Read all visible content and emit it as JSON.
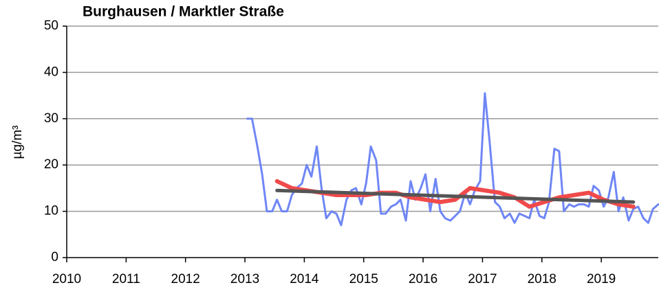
{
  "chart_data": {
    "type": "line",
    "title": "Burghausen / Marktler Straße",
    "ylabel": "µg/m³",
    "xlim": [
      2010,
      2019.96
    ],
    "xticks": [
      2010,
      2011,
      2012,
      2013,
      2014,
      2015,
      2016,
      2017,
      2018,
      2019
    ],
    "ylim": [
      0,
      50
    ],
    "yticks": [
      0,
      10,
      20,
      30,
      40,
      50
    ],
    "grid": true,
    "series": [
      {
        "color": "#6f86f5",
        "width": 3,
        "x": [
          2013.04,
          2013.12,
          2013.21,
          2013.29,
          2013.37,
          2013.46,
          2013.54,
          2013.62,
          2013.71,
          2013.79,
          2013.87,
          2013.96,
          2014.04,
          2014.12,
          2014.21,
          2014.29,
          2014.37,
          2014.46,
          2014.54,
          2014.62,
          2014.71,
          2014.79,
          2014.87,
          2014.96,
          2015.04,
          2015.12,
          2015.21,
          2015.29,
          2015.37,
          2015.46,
          2015.54,
          2015.62,
          2015.71,
          2015.79,
          2015.87,
          2015.96,
          2016.04,
          2016.12,
          2016.21,
          2016.29,
          2016.37,
          2016.46,
          2016.54,
          2016.62,
          2016.71,
          2016.79,
          2016.87,
          2016.96,
          2017.04,
          2017.12,
          2017.21,
          2017.29,
          2017.37,
          2017.46,
          2017.54,
          2017.62,
          2017.71,
          2017.79,
          2017.87,
          2017.96,
          2018.04,
          2018.12,
          2018.21,
          2018.29,
          2018.37,
          2018.46,
          2018.54,
          2018.62,
          2018.71,
          2018.79,
          2018.87,
          2018.96,
          2019.04,
          2019.12,
          2019.21,
          2019.29,
          2019.37,
          2019.46,
          2019.54,
          2019.62,
          2019.71,
          2019.79,
          2019.87,
          2019.96
        ],
        "values": [
          30,
          30,
          24,
          18,
          10,
          10,
          12.5,
          10,
          10,
          13.5,
          15,
          16,
          20,
          17.5,
          24,
          15,
          8.5,
          10,
          9.5,
          7,
          12.5,
          14.5,
          15,
          11.5,
          16,
          24,
          21,
          9.5,
          9.5,
          11,
          11.5,
          12.5,
          8,
          16.5,
          12.5,
          15,
          18,
          10,
          17,
          10,
          8.5,
          8,
          9,
          10,
          14,
          11.5,
          14.5,
          16.5,
          35.5,
          25,
          12,
          11,
          8.5,
          9.5,
          7.5,
          9.5,
          9,
          8.5,
          12.5,
          9,
          8.5,
          12,
          23.5,
          23,
          10,
          11.5,
          11,
          11.5,
          11.5,
          11,
          15.5,
          14.5,
          11,
          13,
          18.5,
          10,
          13,
          8,
          10.5,
          11,
          8.5,
          7.5,
          10.5,
          11.5
        ]
      },
      {
        "color": "#f04a4a",
        "width": 6,
        "x": [
          2013.54,
          2013.79,
          2014.04,
          2014.29,
          2014.54,
          2014.79,
          2015.04,
          2015.29,
          2015.54,
          2015.79,
          2016.04,
          2016.29,
          2016.54,
          2016.79,
          2017.04,
          2017.29,
          2017.54,
          2017.79,
          2018.04,
          2018.29,
          2018.54,
          2018.79,
          2019.04,
          2019.29,
          2019.54
        ],
        "values": [
          16.5,
          15,
          14.5,
          14,
          13.5,
          13.5,
          13.5,
          14,
          14,
          13,
          12.5,
          12,
          12.5,
          15,
          14.5,
          14,
          13,
          11,
          12,
          13,
          13.5,
          14,
          12.5,
          11.5,
          11
        ]
      },
      {
        "color": "#555555",
        "width": 5,
        "x": [
          2013.54,
          2019.54
        ],
        "values": [
          14.5,
          12
        ]
      }
    ]
  }
}
